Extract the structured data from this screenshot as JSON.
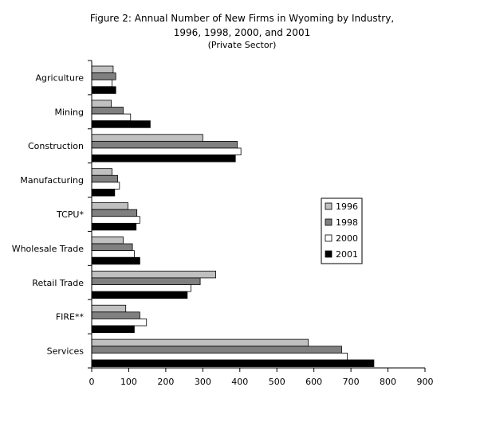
{
  "chart_data": {
    "type": "bar",
    "orientation": "horizontal",
    "title_lines": [
      "Figure 2: Annual Number of New Firms in Wyoming by Industry,",
      "1996, 1998, 2000, and 2001"
    ],
    "subtitle": "(Private Sector)",
    "categories": [
      "Agriculture",
      "Mining",
      "Construction",
      "Manufacturing",
      "TCPU*",
      "Wholesale Trade",
      "Retail Trade",
      "FIRE**",
      "Services"
    ],
    "series": [
      {
        "name": "1996",
        "color": "#c0c0c0",
        "values": [
          58,
          53,
          300,
          55,
          98,
          85,
          335,
          92,
          585
        ]
      },
      {
        "name": "1998",
        "color": "#808080",
        "values": [
          65,
          85,
          393,
          70,
          122,
          110,
          293,
          130,
          675
        ]
      },
      {
        "name": "2000",
        "color": "#ffffff",
        "values": [
          55,
          105,
          403,
          75,
          130,
          115,
          268,
          148,
          690
        ]
      },
      {
        "name": "2001",
        "color": "#000000",
        "values": [
          65,
          158,
          388,
          62,
          120,
          130,
          258,
          115,
          762
        ]
      }
    ],
    "xlim": [
      0,
      900
    ],
    "xticks": [
      0,
      100,
      200,
      300,
      400,
      500,
      600,
      700,
      800,
      900
    ],
    "grid": false,
    "legend_position": "right"
  }
}
